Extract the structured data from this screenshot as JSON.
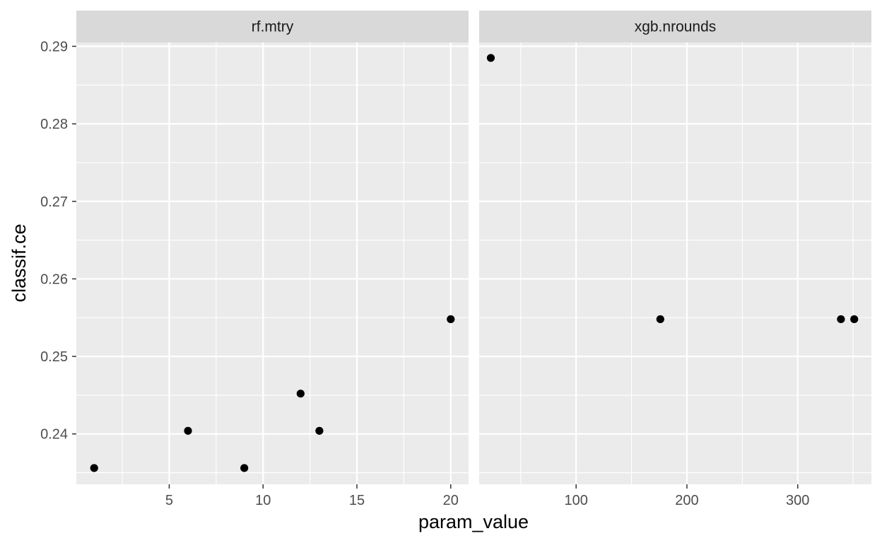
{
  "chart_data": {
    "type": "scatter",
    "xlabel": "param_value",
    "ylabel": "classif.ce",
    "ylim": [
      0.2335,
      0.2905
    ],
    "y_ticks": [
      0.24,
      0.25,
      0.26,
      0.27,
      0.28,
      0.29
    ],
    "y_tick_labels": [
      "0.24",
      "0.25",
      "0.26",
      "0.27",
      "0.28",
      "0.29"
    ],
    "point_color": "#000000",
    "panel_background": "#ebebeb",
    "strip_background": "#d9d9d9",
    "panels": [
      {
        "strip": "rf.mtry",
        "xlim": [
          0.05,
          20.95
        ],
        "x_ticks": [
          5,
          10,
          15,
          20
        ],
        "x_tick_labels": [
          "5",
          "10",
          "15",
          "20"
        ],
        "points": [
          {
            "x": 1,
            "y": 0.2356
          },
          {
            "x": 6,
            "y": 0.2404
          },
          {
            "x": 9,
            "y": 0.2356
          },
          {
            "x": 12,
            "y": 0.2452
          },
          {
            "x": 13,
            "y": 0.2404
          },
          {
            "x": 20,
            "y": 0.2548
          }
        ]
      },
      {
        "strip": "xgb.nrounds",
        "xlim": [
          12.5,
          366.5
        ],
        "x_ticks": [
          100,
          200,
          300
        ],
        "x_tick_labels": [
          "100",
          "200",
          "300"
        ],
        "points": [
          {
            "x": 23,
            "y": 0.2885
          },
          {
            "x": 176,
            "y": 0.2548
          },
          {
            "x": 339,
            "y": 0.2548
          },
          {
            "x": 351,
            "y": 0.2548
          }
        ]
      }
    ]
  }
}
